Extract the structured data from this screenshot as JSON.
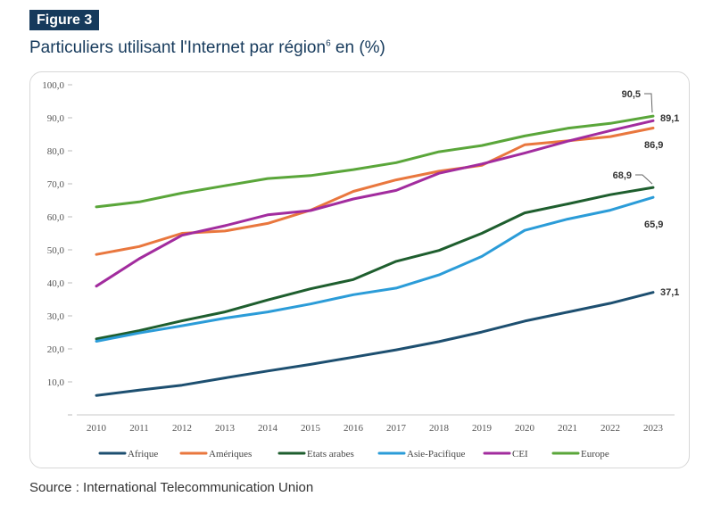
{
  "figure_label": "Figure 3",
  "title_text": "Particuliers utilisant l'Internet par région",
  "title_superscript": "6",
  "title_suffix": " en (%)",
  "source_text": "Source : International Telecommunication Union",
  "chart_data": {
    "type": "line",
    "title": "",
    "xlabel": "",
    "ylabel": "",
    "ylim": [
      0,
      100
    ],
    "y_ticks": [
      "",
      "10,0",
      "20,0",
      "30,0",
      "40,0",
      "50,0",
      "60,0",
      "70,0",
      "80,0",
      "90,0",
      "100,0"
    ],
    "x": [
      "2010",
      "2011",
      "2012",
      "2013",
      "2014",
      "2015",
      "2016",
      "2017",
      "2018",
      "2019",
      "2020",
      "2021",
      "2022",
      "2023"
    ],
    "grid": false,
    "legend_position": "bottom",
    "series": [
      {
        "name": "Afrique",
        "color": "#1d4f70",
        "values": [
          5.9,
          7.5,
          9.0,
          11.2,
          13.3,
          15.3,
          17.5,
          19.7,
          22.2,
          25.1,
          28.4,
          31.1,
          33.8,
          37.1
        ],
        "end_label": "37,1"
      },
      {
        "name": "Amériques",
        "color": "#e9773e",
        "values": [
          48.6,
          51.0,
          55.0,
          55.7,
          58.0,
          62.0,
          67.7,
          71.2,
          73.8,
          75.6,
          81.8,
          83.0,
          84.3,
          86.9
        ],
        "end_label": "86,9"
      },
      {
        "name": "Etats arabes",
        "color": "#1e5e2e",
        "values": [
          23.0,
          25.5,
          28.5,
          31.2,
          34.8,
          38.2,
          41.0,
          46.5,
          49.8,
          55.0,
          61.2,
          63.9,
          66.7,
          68.9
        ],
        "end_label": "68,9"
      },
      {
        "name": "Asie-Pacifique",
        "color": "#2b9cd8",
        "values": [
          22.3,
          24.8,
          27.0,
          29.3,
          31.2,
          33.6,
          36.4,
          38.4,
          42.4,
          48.0,
          55.9,
          59.3,
          62.0,
          65.9
        ],
        "end_label": "65,9"
      },
      {
        "name": "CEI",
        "color": "#a22c9e",
        "values": [
          39.0,
          47.3,
          54.4,
          57.3,
          60.6,
          61.9,
          65.4,
          68.0,
          73.2,
          76.0,
          79.3,
          82.9,
          86.1,
          89.1
        ],
        "end_label": "89,1"
      },
      {
        "name": "Europe",
        "color": "#5aa63a",
        "values": [
          63.0,
          64.5,
          67.2,
          69.4,
          71.6,
          72.5,
          74.3,
          76.4,
          79.7,
          81.6,
          84.5,
          86.8,
          88.3,
          90.5
        ],
        "end_label": "90,5"
      }
    ]
  }
}
